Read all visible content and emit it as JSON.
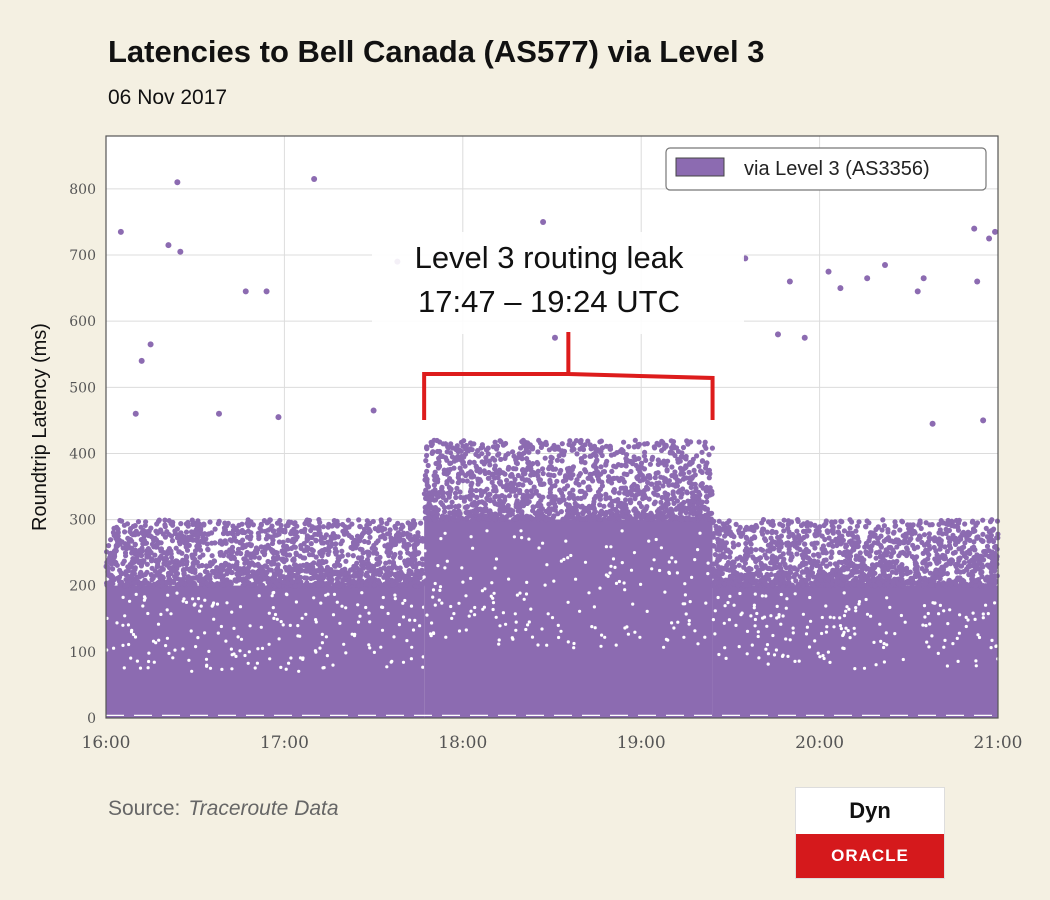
{
  "chart_data": {
    "type": "scatter",
    "title": "Latencies to Bell Canada (AS577) via Level 3",
    "subtitle": "06 Nov 2017",
    "ylabel": "Roundtrip Latency (ms)",
    "xlabel": "",
    "x_ticks": [
      "16:00",
      "17:00",
      "18:00",
      "19:00",
      "20:00",
      "21:00"
    ],
    "y_ticks": [
      "0",
      "100",
      "200",
      "300",
      "400",
      "500",
      "600",
      "700",
      "800"
    ],
    "xlim": [
      "16:00",
      "21:00"
    ],
    "ylim": [
      0,
      880
    ],
    "grid": true,
    "legend_position": "top-right",
    "series": [
      {
        "name": "via Level 3 (AS3356)",
        "color": "#8c6bb1",
        "dense_bands": [
          {
            "x_start": "16:00",
            "x_end": "17:47",
            "dense_up_to_ms": 200,
            "scattered_up_to_ms": 300
          },
          {
            "x_start": "17:47",
            "x_end": "19:24",
            "dense_up_to_ms": 300,
            "scattered_up_to_ms": 420
          },
          {
            "x_start": "19:24",
            "x_end": "21:00",
            "dense_up_to_ms": 200,
            "scattered_up_to_ms": 300
          }
        ],
        "outliers": [
          {
            "x": "16:05",
            "y": 735
          },
          {
            "x": "16:12",
            "y": 540
          },
          {
            "x": "16:15",
            "y": 565
          },
          {
            "x": "16:24",
            "y": 810
          },
          {
            "x": "16:21",
            "y": 715
          },
          {
            "x": "16:25",
            "y": 705
          },
          {
            "x": "16:47",
            "y": 645
          },
          {
            "x": "16:54",
            "y": 645
          },
          {
            "x": "17:10",
            "y": 815
          },
          {
            "x": "17:38",
            "y": 690
          },
          {
            "x": "17:52",
            "y": 700
          },
          {
            "x": "18:31",
            "y": 575
          },
          {
            "x": "18:27",
            "y": 750
          },
          {
            "x": "19:35",
            "y": 695
          },
          {
            "x": "19:46",
            "y": 580
          },
          {
            "x": "19:50",
            "y": 660
          },
          {
            "x": "19:55",
            "y": 575
          },
          {
            "x": "20:03",
            "y": 675
          },
          {
            "x": "20:07",
            "y": 650
          },
          {
            "x": "20:16",
            "y": 665
          },
          {
            "x": "20:22",
            "y": 685
          },
          {
            "x": "20:33",
            "y": 645
          },
          {
            "x": "20:35",
            "y": 665
          },
          {
            "x": "20:52",
            "y": 740
          },
          {
            "x": "20:53",
            "y": 660
          },
          {
            "x": "20:57",
            "y": 725
          },
          {
            "x": "20:59",
            "y": 735
          },
          {
            "x": "16:10",
            "y": 460
          },
          {
            "x": "16:38",
            "y": 460
          },
          {
            "x": "16:58",
            "y": 455
          },
          {
            "x": "17:30",
            "y": 465
          },
          {
            "x": "20:38",
            "y": 445
          },
          {
            "x": "20:55",
            "y": 450
          }
        ]
      }
    ],
    "annotation": {
      "lines": [
        "Level 3 routing leak",
        "17:47 – 19:24 UTC"
      ],
      "x_start": "17:47",
      "x_end": "19:24",
      "color": "#dd1c1c"
    }
  },
  "footer": {
    "source_label": "Source:",
    "source_value": "Traceroute Data"
  },
  "logo": {
    "top": "Dyn",
    "bottom": "ORACLE"
  }
}
